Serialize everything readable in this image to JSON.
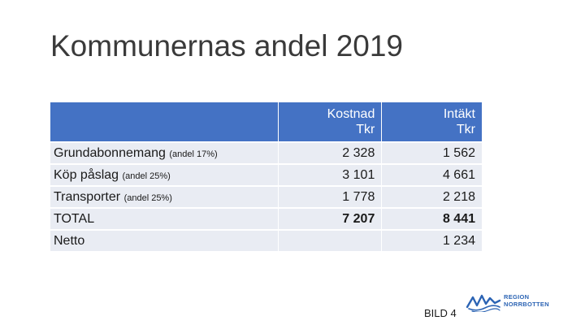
{
  "title": "Kommunernas andel 2019",
  "table": {
    "headers": [
      {
        "line1": "Kostnad",
        "line2": "Tkr"
      },
      {
        "line1": "Intäkt",
        "line2": "Tkr"
      }
    ],
    "rows": [
      {
        "label": "Grundabonnemang",
        "note": "(andel 17%)",
        "kostnad": "2 328",
        "intakt": "1 562"
      },
      {
        "label": "Köp påslag",
        "note": "(andel 25%)",
        "kostnad": "3 101",
        "intakt": "4 661"
      },
      {
        "label": "Transporter",
        "note": "(andel 25%)",
        "kostnad": "1 778",
        "intakt": "2 218"
      },
      {
        "label": "TOTAL",
        "note": "",
        "kostnad": "7 207",
        "intakt": "8 441"
      },
      {
        "label": "Netto",
        "note": "",
        "kostnad": "",
        "intakt": "1 234"
      }
    ]
  },
  "footer": {
    "slide_label": "BILD 4",
    "logo_line1": "REGION",
    "logo_line2": "NORRBOTTEN"
  },
  "colors": {
    "header_fill": "#4472c4",
    "row_fill": "#e9ecf3",
    "logo_blue": "#2c64b4"
  }
}
